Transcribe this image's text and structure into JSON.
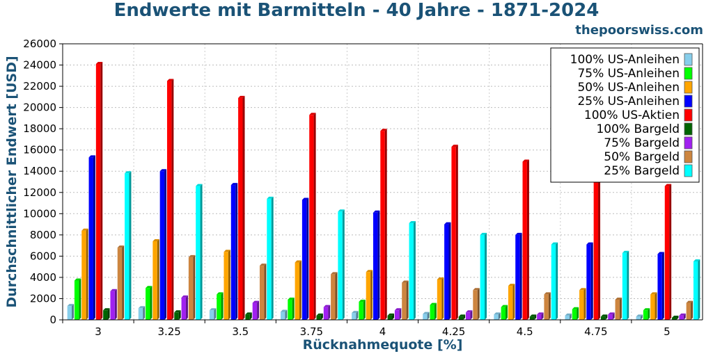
{
  "header": {
    "title": "Endwerte mit Barmitteln - 40 Jahre - 1871-2024",
    "brand": "thepoorswiss.com"
  },
  "chart_data": {
    "type": "bar",
    "title": "Endwerte mit Barmitteln - 40 Jahre - 1871-2024",
    "xlabel": "Rücknahmequote [%]",
    "ylabel": "Durchschnittlicher Endwert [USD]",
    "ylim": [
      0,
      26000
    ],
    "yticks": [
      0,
      2000,
      4000,
      6000,
      8000,
      10000,
      12000,
      14000,
      16000,
      18000,
      20000,
      22000,
      24000,
      26000
    ],
    "grid": true,
    "legend_position": "top-right",
    "categories": [
      "3",
      "3.25",
      "3.5",
      "3.75",
      "4",
      "4.25",
      "4.5",
      "4.75",
      "5"
    ],
    "series": [
      {
        "name": "100% US-Anleihen",
        "color": "#87ceeb",
        "values": [
          1300,
          1100,
          900,
          750,
          650,
          550,
          500,
          400,
          300
        ]
      },
      {
        "name": "75% US-Anleihen",
        "color": "#00ff00",
        "values": [
          3700,
          3000,
          2400,
          1900,
          1700,
          1400,
          1200,
          1000,
          900
        ]
      },
      {
        "name": "50% US-Anleihen",
        "color": "#ffa500",
        "values": [
          8400,
          7400,
          6400,
          5400,
          4500,
          3800,
          3200,
          2800,
          2400
        ]
      },
      {
        "name": "25% US-Anleihen",
        "color": "#0000ff",
        "values": [
          15300,
          14000,
          12700,
          11300,
          10100,
          9000,
          8000,
          7100,
          6200
        ]
      },
      {
        "name": "100% US-Aktien",
        "color": "#ff0000",
        "values": [
          24100,
          22500,
          20900,
          19300,
          17800,
          16300,
          14900,
          13800,
          12600
        ]
      },
      {
        "name": "100% Bargeld",
        "color": "#006400",
        "values": [
          900,
          700,
          500,
          400,
          400,
          300,
          300,
          300,
          200
        ]
      },
      {
        "name": "75% Bargeld",
        "color": "#a020f0",
        "values": [
          2700,
          2100,
          1600,
          1200,
          900,
          700,
          500,
          500,
          400
        ]
      },
      {
        "name": "50% Bargeld",
        "color": "#cd853f",
        "values": [
          6800,
          5900,
          5100,
          4300,
          3500,
          2800,
          2400,
          1900,
          1600
        ]
      },
      {
        "name": "25% Bargeld",
        "color": "#00ffff",
        "values": [
          13800,
          12600,
          11400,
          10200,
          9100,
          8000,
          7100,
          6300,
          5500
        ]
      }
    ]
  }
}
